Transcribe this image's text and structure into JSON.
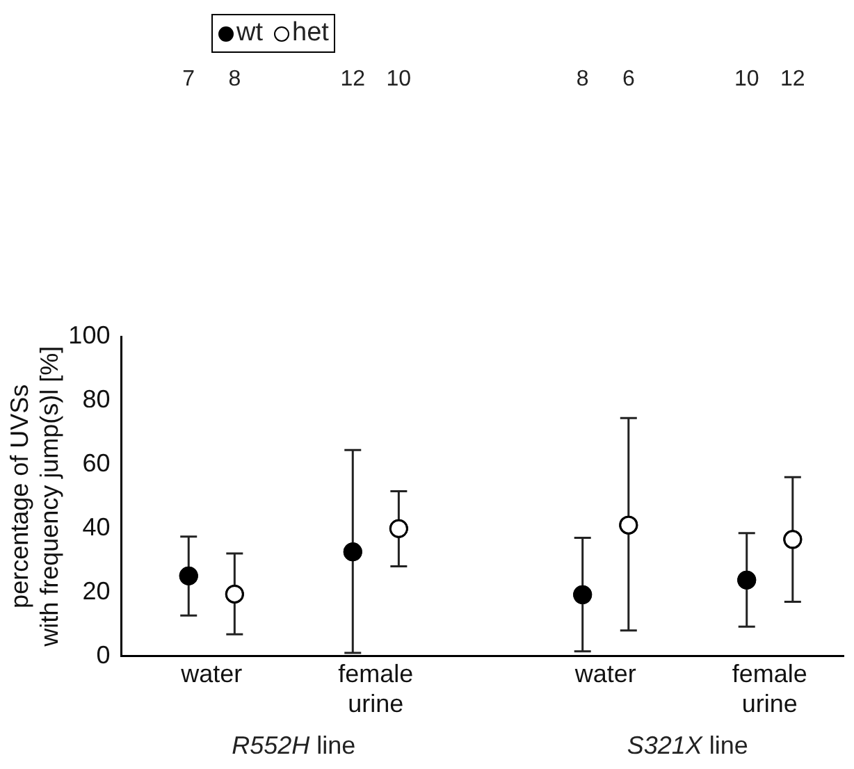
{
  "chart_data": {
    "type": "scatter",
    "ylabel": "percentage of UVSs with frequency jump(s)l [%]",
    "categories": [
      "water",
      "female urine",
      "water",
      "female urine"
    ],
    "series": [
      {
        "name": "wt",
        "color": "#000000",
        "values": [
          25.1,
          32.6,
          19.2,
          23.8
        ],
        "errors": [
          [
            12.7,
            37.4
          ],
          [
            1,
            64.5
          ],
          [
            1.5,
            37
          ],
          [
            9.2,
            38.5
          ]
        ]
      },
      {
        "name": "het",
        "color": "#ffffff",
        "values": [
          19.4,
          39.9,
          41,
          36.5
        ],
        "errors": [
          [
            6.8,
            32.1
          ],
          [
            28.1,
            51.6
          ],
          [
            8,
            74.5
          ],
          [
            17,
            56
          ]
        ]
      }
    ],
    "annotations": [
      "7",
      "8",
      "12",
      "10",
      "8",
      "6",
      "10",
      "12",
      "R552H line",
      "S321X line"
    ],
    "ylim": [
      0,
      100
    ],
    "yticks": [
      0,
      20,
      40,
      60,
      80,
      100
    ],
    "grid": false,
    "legend": "top left",
    "marker": "circle"
  }
}
